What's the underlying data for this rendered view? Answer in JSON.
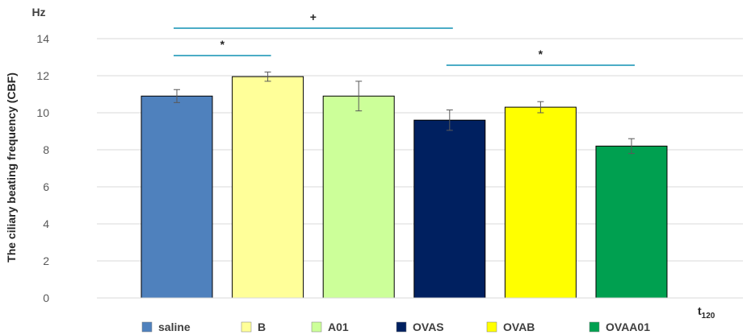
{
  "chart_data": {
    "type": "bar",
    "ylabel": "The ciliary beating frequency (CBF)",
    "y_unit": "Hz",
    "x_timepoint": {
      "base": "t",
      "subscript": "120"
    },
    "ylim": [
      0,
      14
    ],
    "yticks": [
      "0",
      "2",
      "4",
      "6",
      "8",
      "10",
      "12",
      "14"
    ],
    "grid": true,
    "legend_position": "bottom",
    "categories": [
      "saline",
      "B",
      "A01",
      "OVAS",
      "OVAB",
      "OVAA01"
    ],
    "values": [
      10.9,
      11.95,
      10.9,
      9.6,
      10.3,
      8.2
    ],
    "errors": [
      0.35,
      0.25,
      0.8,
      0.55,
      0.3,
      0.4
    ],
    "colors": [
      "#4f81bd",
      "#ffff99",
      "#ccff99",
      "#002060",
      "#ffff00",
      "#00a050"
    ],
    "significance": [
      {
        "symbol": "+",
        "from": "saline",
        "to": "OVAS"
      },
      {
        "symbol": "*",
        "from": "saline",
        "to": "B"
      },
      {
        "symbol": "*",
        "from": "OVAS",
        "to": "OVAA01"
      }
    ]
  }
}
